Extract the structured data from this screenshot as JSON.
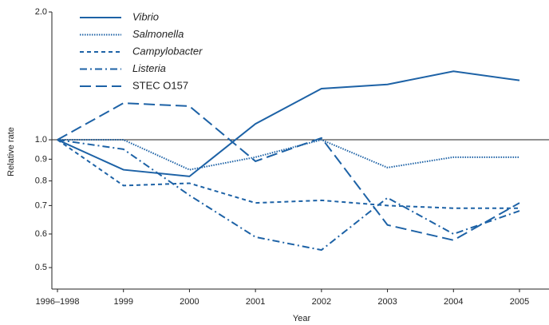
{
  "chart_data": {
    "type": "line",
    "x_label": "Year",
    "y_label": "Relative rate",
    "categories": [
      "1996–1998",
      "1999",
      "2000",
      "2001",
      "2002",
      "2003",
      "2004",
      "2005"
    ],
    "log_y": true,
    "ylim": [
      0.445,
      2.0
    ],
    "yticks": [
      {
        "value": 2,
        "label": "2.0"
      },
      {
        "value": 1,
        "label": "1.0"
      },
      0.9,
      0.8,
      0.7,
      0.6,
      0.5
    ],
    "reference_line": 1,
    "legend": "upper left",
    "series": [
      {
        "name": "Vibrio",
        "color": "#1d62a6",
        "dash": "none",
        "italic": true,
        "values": [
          1.0,
          0.85,
          0.82,
          1.09,
          1.32,
          1.35,
          1.45,
          1.38
        ]
      },
      {
        "name": "Salmonella",
        "color": "#1d62a6",
        "dash": "1.5 1.5",
        "italic": true,
        "values": [
          1.0,
          1.0,
          0.85,
          0.91,
          1.0,
          0.86,
          0.91,
          0.91
        ]
      },
      {
        "name": "Campylobacter",
        "color": "#1d62a6",
        "dash": "5 4",
        "italic": true,
        "values": [
          1.0,
          0.78,
          0.79,
          0.71,
          0.72,
          0.7,
          0.69,
          0.69
        ]
      },
      {
        "name": "Listeria",
        "color": "#1d62a6",
        "dash": "9 4 2 4",
        "italic": true,
        "values": [
          1.0,
          0.95,
          0.74,
          0.59,
          0.55,
          0.73,
          0.6,
          0.68
        ]
      },
      {
        "name": "STEC O157",
        "color": "#1d62a6",
        "dash": "14 6",
        "italic": false,
        "values": [
          1.0,
          1.22,
          1.2,
          0.89,
          1.01,
          0.63,
          0.58,
          0.71
        ]
      }
    ]
  }
}
